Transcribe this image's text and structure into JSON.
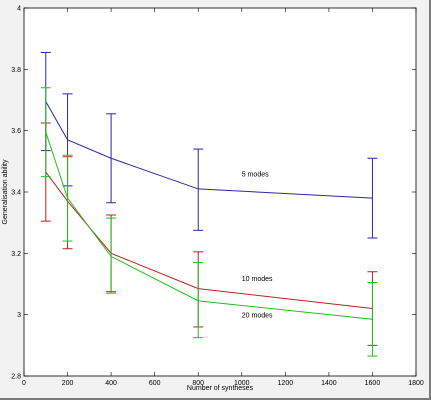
{
  "chart_data": {
    "type": "line",
    "title": "",
    "xlabel": "Number of syntheses",
    "ylabel": "Generalisation ability",
    "xlim": [
      0,
      1800
    ],
    "ylim": [
      2.8,
      4.0
    ],
    "x_ticks": [
      0,
      200,
      400,
      600,
      800,
      1000,
      1200,
      1400,
      1600,
      1800
    ],
    "y_ticks": [
      2.8,
      3.0,
      3.2,
      3.4,
      3.6,
      3.8,
      4.0
    ],
    "x_tick_labels": [
      "0",
      "200",
      "400",
      "600",
      "800",
      "1000",
      "1200",
      "1400",
      "1600",
      "1800"
    ],
    "y_tick_labels": [
      "2.8",
      "3",
      "3.2",
      "3.4",
      "3.6",
      "3.8",
      "4"
    ],
    "grid": false,
    "legend": "none",
    "series": [
      {
        "label": "5 modes",
        "color": "#2a2aa0",
        "x": [
          100,
          200,
          400,
          800,
          1600
        ],
        "y": [
          3.695,
          3.57,
          3.51,
          3.41,
          3.38
        ],
        "error_low": [
          3.535,
          3.42,
          3.365,
          3.275,
          3.25
        ],
        "error_high": [
          3.855,
          3.72,
          3.655,
          3.54,
          3.51
        ]
      },
      {
        "label": "10 modes",
        "color": "#c02020",
        "x": [
          100,
          200,
          400,
          800,
          1600
        ],
        "y": [
          3.465,
          3.37,
          3.2,
          3.085,
          3.02
        ],
        "error_low": [
          3.305,
          3.215,
          3.075,
          2.96,
          2.9
        ],
        "error_high": [
          3.625,
          3.515,
          3.325,
          3.205,
          3.14
        ]
      },
      {
        "label": "20 modes",
        "color": "#20c020",
        "x": [
          100,
          200,
          400,
          800,
          1600
        ],
        "y": [
          3.595,
          3.38,
          3.19,
          3.045,
          2.985
        ],
        "error_low": [
          3.45,
          3.24,
          3.07,
          2.925,
          2.865
        ],
        "error_high": [
          3.74,
          3.52,
          3.315,
          3.17,
          3.105
        ]
      }
    ]
  }
}
